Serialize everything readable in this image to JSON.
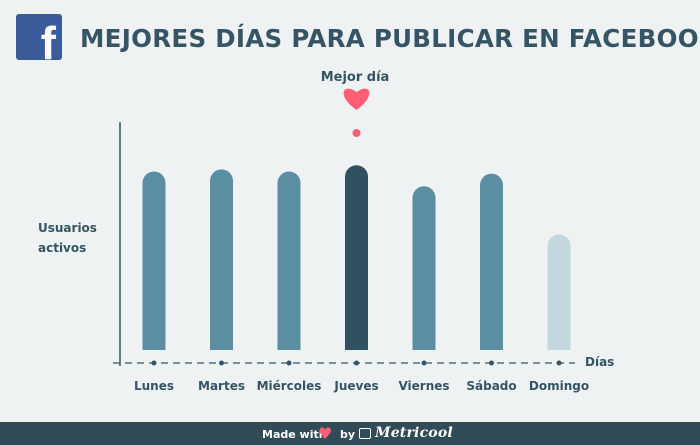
{
  "header": {
    "title": "MEJORES DÍAS PARA PUBLICAR EN FACEBOOK",
    "logo_icon": "facebook-icon"
  },
  "annotation": {
    "best_day_label": "Mejor día",
    "icon": "heart-icon",
    "color": "#ff5f74"
  },
  "colors": {
    "bar": "#5b8ea3",
    "highlight": "#305260",
    "faded": "#c4d7df",
    "axis": "#355564",
    "footer_bg": "#324c57"
  },
  "chart_data": {
    "type": "bar",
    "title": "MEJORES DÍAS PARA PUBLICAR EN FACEBOOK",
    "xlabel": "Días",
    "ylabel": "Usuarios activos",
    "categories": [
      "Lunes",
      "Martes",
      "Miércoles",
      "Jueves",
      "Viernes",
      "Sábado",
      "Domingo"
    ],
    "values": [
      85,
      86,
      85,
      88,
      78,
      84,
      55
    ],
    "ylim": [
      0,
      100
    ],
    "highlight": "Jueves",
    "grid": false,
    "legend": "none"
  },
  "footer": {
    "made_with": "Made with",
    "by": "by",
    "brand": "Metricool",
    "heart_icon": "heart-icon",
    "brand_icon": "metricool-icon"
  }
}
